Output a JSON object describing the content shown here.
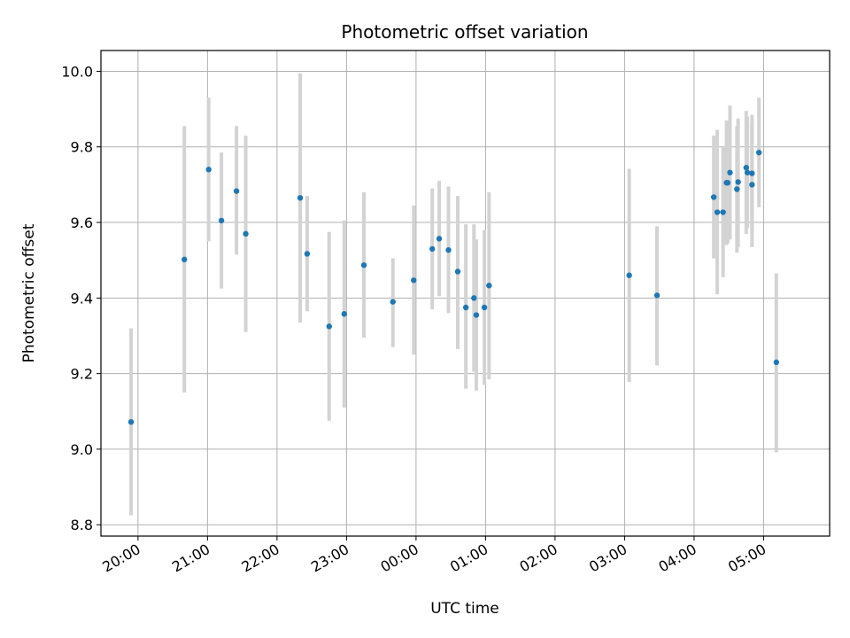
{
  "chart_data": {
    "type": "scatter",
    "title": "Photometric offset variation",
    "xlabel": "UTC time",
    "ylabel": "Photometric offset",
    "x_axis": "time (UTC, HH:MM), spanning two consecutive nights",
    "x_ticks": [
      "20:00",
      "21:00",
      "22:00",
      "23:00",
      "00:00",
      "01:00",
      "02:00",
      "03:00",
      "04:00",
      "05:00"
    ],
    "y_ticks": [
      "8.8",
      "9.0",
      "9.2",
      "9.4",
      "9.6",
      "9.8",
      "10.0"
    ],
    "xlim": [
      "19:28",
      "05:57"
    ],
    "ylim": [
      8.77,
      10.055
    ],
    "grid": true,
    "point_color": "#1f77b4",
    "errorbar_color": "#d3d3d3",
    "points": [
      {
        "t": "19:54",
        "y": 9.072,
        "lo": 8.825,
        "hi": 9.32
      },
      {
        "t": "20:40",
        "y": 9.502,
        "lo": 9.15,
        "hi": 9.855
      },
      {
        "t": "21:01",
        "y": 9.74,
        "lo": 9.55,
        "hi": 9.93
      },
      {
        "t": "21:12",
        "y": 9.605,
        "lo": 9.425,
        "hi": 9.785
      },
      {
        "t": "21:25",
        "y": 9.683,
        "lo": 9.515,
        "hi": 9.855
      },
      {
        "t": "21:33",
        "y": 9.57,
        "lo": 9.31,
        "hi": 9.83
      },
      {
        "t": "22:20",
        "y": 9.665,
        "lo": 9.335,
        "hi": 9.995
      },
      {
        "t": "22:26",
        "y": 9.517,
        "lo": 9.365,
        "hi": 9.67
      },
      {
        "t": "22:45",
        "y": 9.325,
        "lo": 9.075,
        "hi": 9.575
      },
      {
        "t": "22:58",
        "y": 9.358,
        "lo": 9.11,
        "hi": 9.605
      },
      {
        "t": "23:15",
        "y": 9.487,
        "lo": 9.295,
        "hi": 9.68
      },
      {
        "t": "23:40",
        "y": 9.39,
        "lo": 9.27,
        "hi": 9.505
      },
      {
        "t": "23:58",
        "y": 9.447,
        "lo": 9.25,
        "hi": 9.645
      },
      {
        "t": "00:14",
        "y": 9.53,
        "lo": 9.37,
        "hi": 9.69
      },
      {
        "t": "00:20",
        "y": 9.557,
        "lo": 9.405,
        "hi": 9.71
      },
      {
        "t": "00:28",
        "y": 9.527,
        "lo": 9.36,
        "hi": 9.695
      },
      {
        "t": "00:36",
        "y": 9.47,
        "lo": 9.265,
        "hi": 9.67
      },
      {
        "t": "00:43",
        "y": 9.375,
        "lo": 9.16,
        "hi": 9.595
      },
      {
        "t": "00:50",
        "y": 9.4,
        "lo": 9.205,
        "hi": 9.595
      },
      {
        "t": "00:52",
        "y": 9.355,
        "lo": 9.155,
        "hi": 9.555
      },
      {
        "t": "00:59",
        "y": 9.375,
        "lo": 9.17,
        "hi": 9.58
      },
      {
        "t": "01:03",
        "y": 9.433,
        "lo": 9.185,
        "hi": 9.68
      },
      {
        "t": "03:04",
        "y": 9.46,
        "lo": 9.178,
        "hi": 9.742
      },
      {
        "t": "03:28",
        "y": 9.407,
        "lo": 9.222,
        "hi": 9.59
      },
      {
        "t": "04:17",
        "y": 9.667,
        "lo": 9.505,
        "hi": 9.83
      },
      {
        "t": "04:20",
        "y": 9.627,
        "lo": 9.41,
        "hi": 9.845
      },
      {
        "t": "04:25",
        "y": 9.627,
        "lo": 9.455,
        "hi": 9.8
      },
      {
        "t": "04:28",
        "y": 9.705,
        "lo": 9.54,
        "hi": 9.87
      },
      {
        "t": "04:29",
        "y": 9.705,
        "lo": 9.545,
        "hi": 9.865
      },
      {
        "t": "04:31",
        "y": 9.732,
        "lo": 9.555,
        "hi": 9.91
      },
      {
        "t": "04:37",
        "y": 9.688,
        "lo": 9.52,
        "hi": 9.855
      },
      {
        "t": "04:38",
        "y": 9.707,
        "lo": 9.535,
        "hi": 9.875
      },
      {
        "t": "04:45",
        "y": 9.745,
        "lo": 9.57,
        "hi": 9.895
      },
      {
        "t": "04:46",
        "y": 9.732,
        "lo": 9.585,
        "hi": 9.88
      },
      {
        "t": "04:50",
        "y": 9.7,
        "lo": 9.535,
        "hi": 9.865
      },
      {
        "t": "04:50",
        "y": 9.73,
        "lo": 9.575,
        "hi": 9.885
      },
      {
        "t": "04:56",
        "y": 9.785,
        "lo": 9.64,
        "hi": 9.93
      },
      {
        "t": "05:11",
        "y": 9.23,
        "lo": 8.992,
        "hi": 9.465
      }
    ]
  }
}
